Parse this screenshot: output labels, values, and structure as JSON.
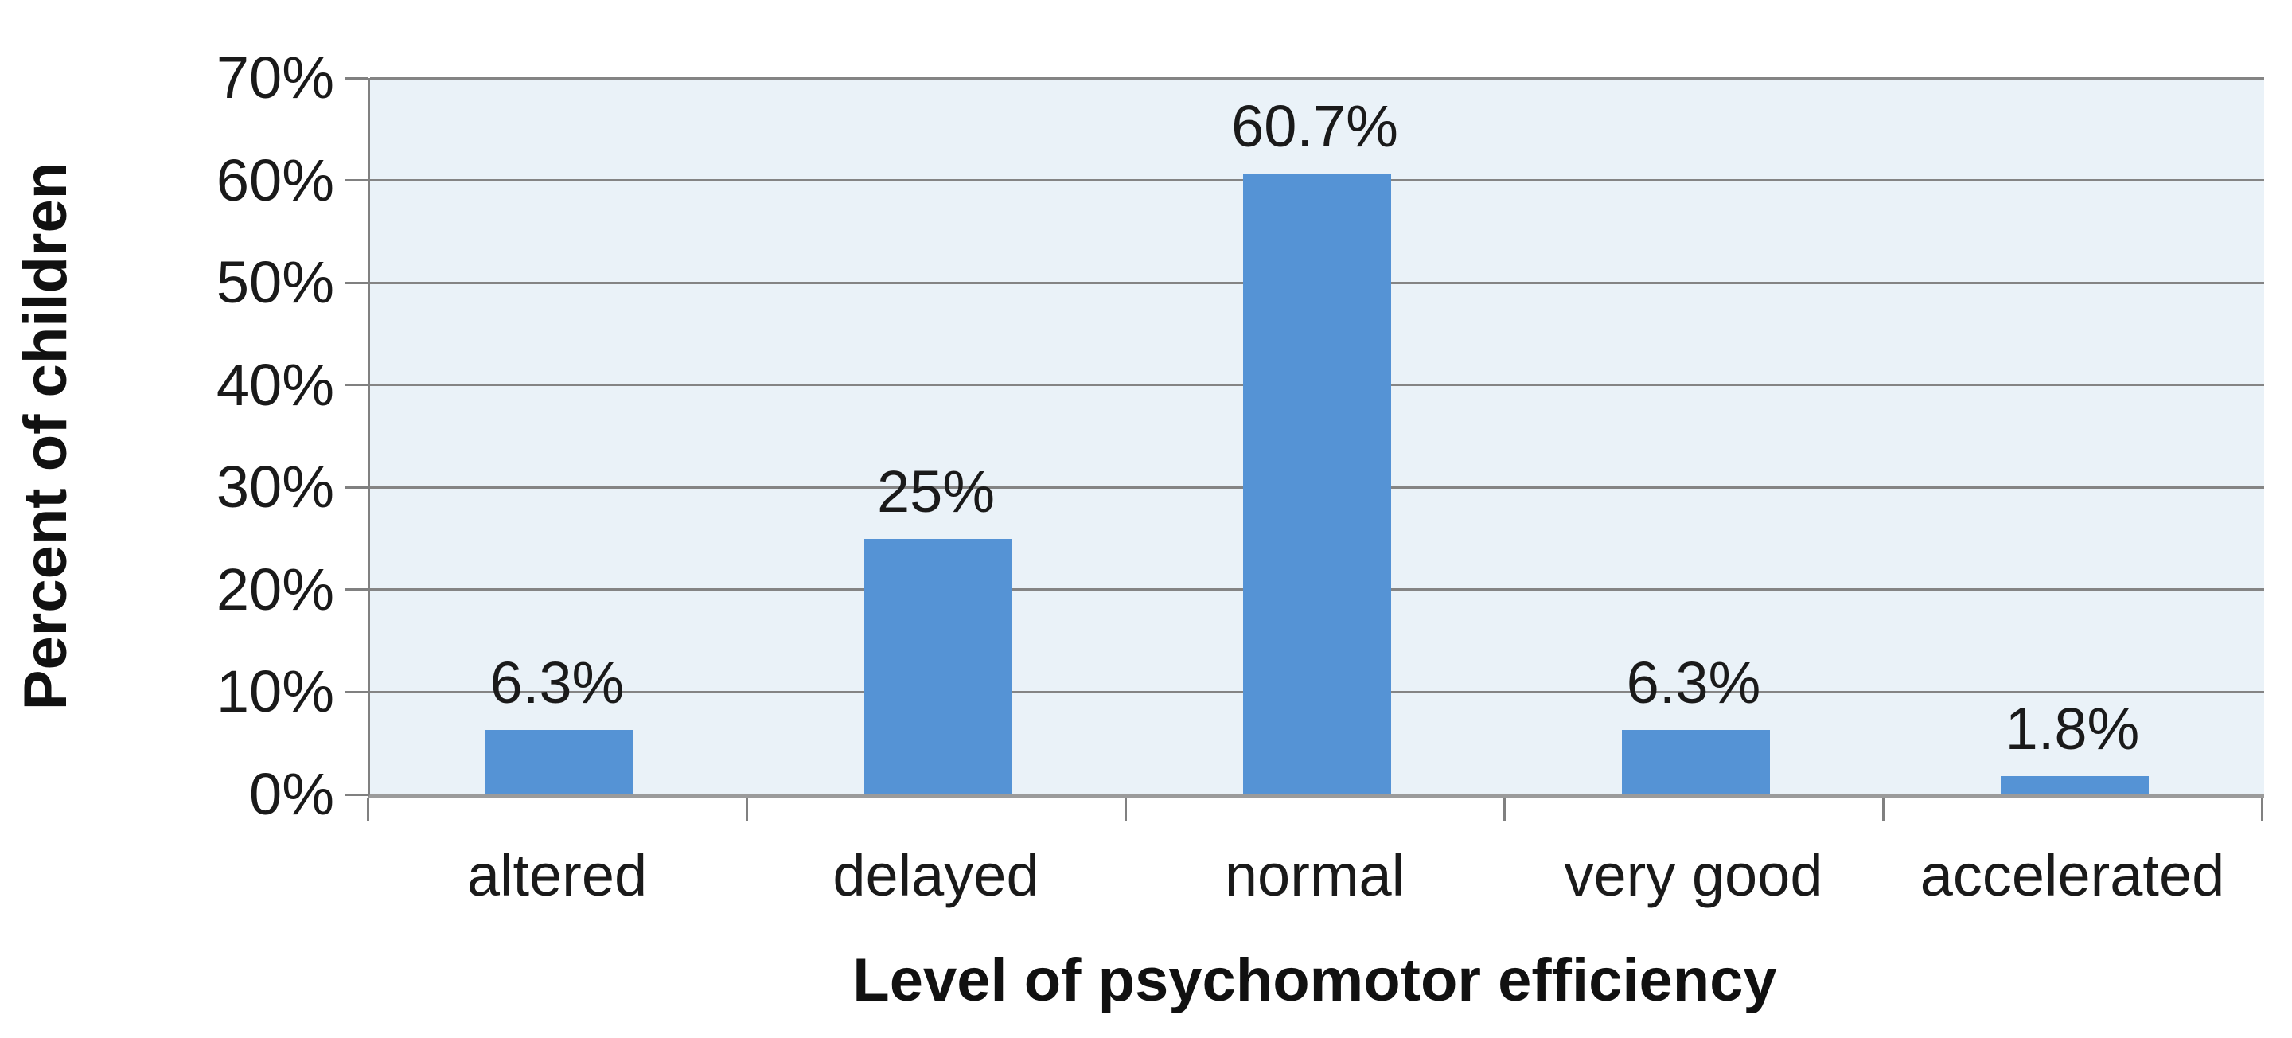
{
  "chart_data": {
    "type": "bar",
    "categories": [
      "altered",
      "delayed",
      "normal",
      "very good",
      "accelerated"
    ],
    "values": [
      6.3,
      25,
      60.7,
      6.3,
      1.8
    ],
    "data_labels": [
      "6.3%",
      "25%",
      "60.7%",
      "6.3%",
      "1.8%"
    ],
    "title": "",
    "xlabel": "Level of psychomotor efficiency",
    "ylabel": "Percent of children",
    "ylim": [
      0,
      70
    ],
    "y_tick_step": 10,
    "y_tick_labels": [
      "0%",
      "10%",
      "20%",
      "30%",
      "40%",
      "50%",
      "60%",
      "70%"
    ],
    "grid": true,
    "legend": false,
    "colors": {
      "bar": "#5593d5",
      "plot_background": "#eaf2f8",
      "gridline": "#848484",
      "axis_line": "#9b9b9b",
      "text": "#1a1a1a"
    }
  }
}
